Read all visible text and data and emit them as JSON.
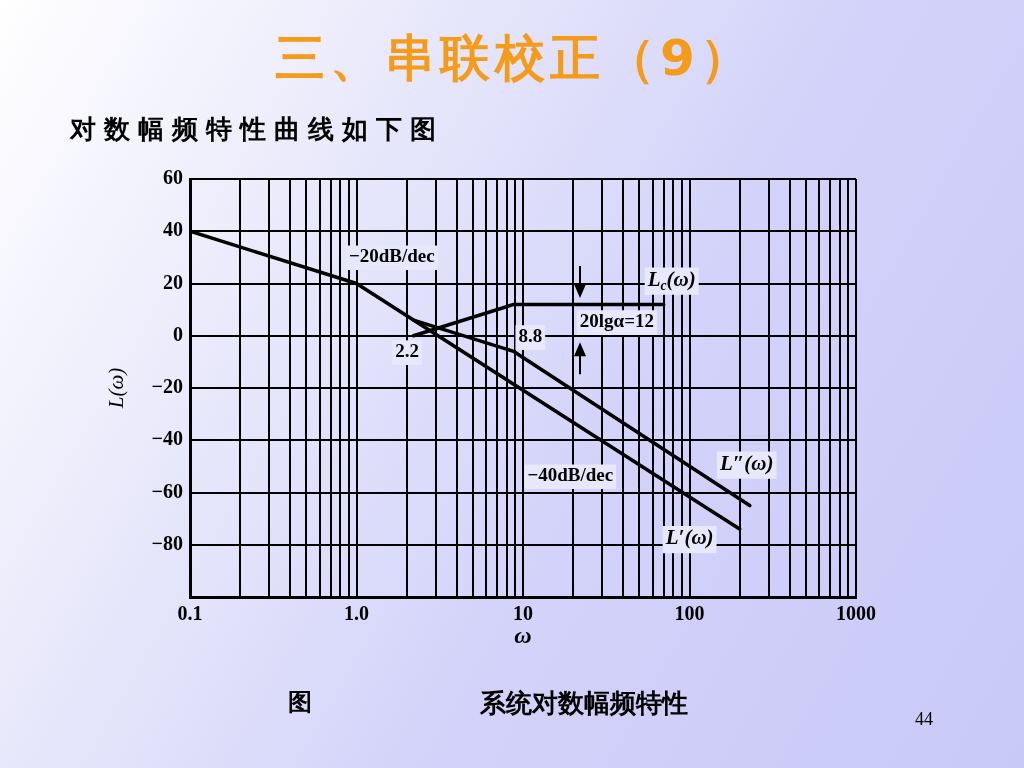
{
  "chart_data": {
    "type": "line",
    "title": "三、串联校正（9）",
    "subtitle": "对数幅频特性曲线如下图",
    "xlabel": "ω",
    "ylabel": "L(ω)",
    "log": "x",
    "xlim": [
      0.1,
      1000
    ],
    "xticks": [
      0.1,
      {
        "value": 0.2,
        "label": null
      },
      {
        "value": 0.3,
        "label": null
      },
      {
        "value": 0.4,
        "label": null
      },
      {
        "value": 0.5,
        "label": null
      },
      {
        "value": 0.6,
        "label": null
      },
      {
        "value": 0.7,
        "label": null
      },
      {
        "value": 0.8,
        "label": null
      },
      {
        "value": 0.9,
        "label": null
      },
      {
        "value": 1,
        "label": "1.0"
      },
      {
        "value": 2,
        "label": null
      },
      {
        "value": 3,
        "label": null
      },
      {
        "value": 4,
        "label": null
      },
      {
        "value": 5,
        "label": null
      },
      {
        "value": 6,
        "label": null
      },
      {
        "value": 7,
        "label": null
      },
      {
        "value": 8,
        "label": null
      },
      {
        "value": 9,
        "label": null
      },
      10,
      {
        "value": 20,
        "label": null
      },
      {
        "value": 30,
        "label": null
      },
      {
        "value": 40,
        "label": null
      },
      {
        "value": 50,
        "label": null
      },
      {
        "value": 60,
        "label": null
      },
      {
        "value": 70,
        "label": null
      },
      {
        "value": 80,
        "label": null
      },
      {
        "value": 90,
        "label": null
      },
      100,
      {
        "value": 200,
        "label": null
      },
      {
        "value": 300,
        "label": null
      },
      {
        "value": 400,
        "label": null
      },
      {
        "value": 500,
        "label": null
      },
      {
        "value": 600,
        "label": null
      },
      {
        "value": 700,
        "label": null
      },
      {
        "value": 800,
        "label": null
      },
      {
        "value": 900,
        "label": null
      },
      1000
    ],
    "ylim": [
      -100,
      60
    ],
    "yticks": [
      {
        "value": -100,
        "label": null
      },
      {
        "value": -80,
        "label": "−80"
      },
      {
        "value": -60,
        "label": "−60"
      },
      {
        "value": -40,
        "label": "−40"
      },
      {
        "value": -20,
        "label": "−20"
      },
      0,
      20,
      40,
      60
    ],
    "grid": true,
    "legend": false,
    "marker": "none",
    "line_style": "solid",
    "series": [
      {
        "name": "L′(ω)",
        "color": "#000000",
        "x": [
          0.1,
          1,
          200
        ],
        "values": [
          40,
          20,
          -74
        ]
      },
      {
        "name": "L″(ω)",
        "color": "#000000",
        "x": [
          2.2,
          8.8,
          230
        ],
        "values": [
          6,
          -6,
          -65
        ]
      },
      {
        "name": "L$_{c}$(ω)",
        "color": "#000000",
        "x": [
          2.2,
          8.8,
          70
        ],
        "values": [
          0,
          12,
          12
        ]
      }
    ],
    "annotations": [
      "−20dB/dec",
      "2.2",
      "8.8",
      "20lgα=12",
      "−40dB/dec",
      "图",
      "系统对数幅频特性",
      "44"
    ]
  }
}
